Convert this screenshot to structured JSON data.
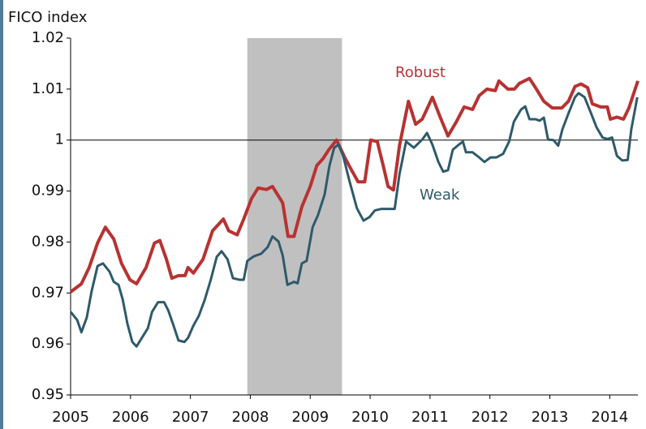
{
  "chart_data": {
    "type": "line",
    "y_label": "FICO index",
    "xlim": [
      2005,
      2014.47
    ],
    "xticks": [
      2005,
      2006,
      2007,
      2008,
      2009,
      2010,
      2011,
      2012,
      2013,
      2014
    ],
    "ylim": [
      0.95,
      1.02
    ],
    "yticks": [
      0.95,
      0.96,
      0.97,
      0.98,
      0.99,
      1,
      1.01,
      1.02
    ],
    "grid": false,
    "hline": 1,
    "shaded_ranges": [
      [
        2007.95,
        2009.53
      ]
    ],
    "shade_color": "#c0c0c0",
    "series": [
      {
        "name": "Robust",
        "color": "#b83232",
        "x": [
          2005.0,
          2005.18,
          2005.31,
          2005.45,
          2005.58,
          2005.72,
          2005.85,
          2005.99,
          2006.1,
          2006.26,
          2006.4,
          2006.49,
          2006.6,
          2006.69,
          2006.8,
          2006.91,
          2006.96,
          2007.05,
          2007.21,
          2007.37,
          2007.55,
          2007.64,
          2007.78,
          2007.89,
          2008.02,
          2008.13,
          2008.27,
          2008.37,
          2008.54,
          2008.63,
          2008.73,
          2008.86,
          2009.0,
          2009.11,
          2009.21,
          2009.31,
          2009.44,
          2009.58,
          2009.69,
          2009.8,
          2009.91,
          2010.01,
          2010.12,
          2010.22,
          2010.3,
          2010.39,
          2010.49,
          2010.64,
          2010.76,
          2010.87,
          2011.04,
          2011.17,
          2011.3,
          2011.44,
          2011.57,
          2011.71,
          2011.82,
          2011.95,
          2012.09,
          2012.15,
          2012.3,
          2012.41,
          2012.49,
          2012.66,
          2012.76,
          2012.9,
          2013.04,
          2013.2,
          2013.31,
          2013.42,
          2013.52,
          2013.63,
          2013.71,
          2013.85,
          2013.96,
          2014.01,
          2014.12,
          2014.23,
          2014.32,
          2014.47
        ],
        "values": [
          0.9702,
          0.9718,
          0.975,
          0.9798,
          0.9829,
          0.9806,
          0.9758,
          0.9726,
          0.9718,
          0.975,
          0.9798,
          0.9803,
          0.9766,
          0.9729,
          0.9734,
          0.9734,
          0.975,
          0.9739,
          0.9766,
          0.9822,
          0.9845,
          0.9822,
          0.9814,
          0.9845,
          0.9885,
          0.9906,
          0.9903,
          0.9909,
          0.9877,
          0.9811,
          0.9811,
          0.9869,
          0.9909,
          0.995,
          0.9963,
          0.9981,
          1.0,
          0.9965,
          0.9941,
          0.9918,
          0.9918,
          1.0,
          0.9997,
          0.9949,
          0.9909,
          0.9902,
          0.9989,
          1.0076,
          1.0031,
          1.0041,
          1.0084,
          1.0045,
          1.0008,
          1.0036,
          1.0065,
          1.006,
          1.0087,
          1.01,
          1.0097,
          1.0116,
          1.01,
          1.01,
          1.0111,
          1.0121,
          1.0103,
          1.0076,
          1.0063,
          1.0063,
          1.0076,
          1.0105,
          1.011,
          1.0103,
          1.0071,
          1.0065,
          1.0065,
          1.0041,
          1.0045,
          1.0041,
          1.0063,
          1.0116
        ]
      },
      {
        "name": "Weak",
        "color": "#2e5a6b",
        "x": [
          2005.0,
          2005.11,
          2005.18,
          2005.27,
          2005.35,
          2005.45,
          2005.54,
          2005.65,
          2005.72,
          2005.8,
          2005.87,
          2005.95,
          2006.03,
          2006.1,
          2006.19,
          2006.29,
          2006.36,
          2006.46,
          2006.56,
          2006.63,
          2006.71,
          2006.8,
          2006.9,
          2006.96,
          2007.05,
          2007.14,
          2007.24,
          2007.34,
          2007.44,
          2007.52,
          2007.62,
          2007.71,
          2007.82,
          2007.89,
          2007.95,
          2008.06,
          2008.18,
          2008.29,
          2008.37,
          2008.47,
          2008.54,
          2008.62,
          2008.73,
          2008.79,
          2008.86,
          2008.94,
          2009.04,
          2009.13,
          2009.24,
          2009.32,
          2009.4,
          2009.47,
          2009.55,
          2009.65,
          2009.78,
          2009.89,
          2009.99,
          2010.08,
          2010.19,
          2010.3,
          2010.41,
          2010.49,
          2010.6,
          2010.73,
          2010.87,
          2010.95,
          2011.04,
          2011.14,
          2011.22,
          2011.3,
          2011.38,
          2011.48,
          2011.55,
          2011.6,
          2011.71,
          2011.82,
          2011.91,
          2012.01,
          2012.11,
          2012.22,
          2012.32,
          2012.4,
          2012.52,
          2012.59,
          2012.66,
          2012.76,
          2012.83,
          2012.9,
          2012.97,
          2013.06,
          2013.14,
          2013.21,
          2013.31,
          2013.42,
          2013.48,
          2013.58,
          2013.69,
          2013.78,
          2013.88,
          2013.96,
          2014.04,
          2014.12,
          2014.21,
          2014.3,
          2014.36,
          2014.46
        ],
        "values": [
          0.9663,
          0.9647,
          0.9623,
          0.9652,
          0.9703,
          0.9753,
          0.9758,
          0.9742,
          0.9722,
          0.9716,
          0.9687,
          0.9639,
          0.9604,
          0.9595,
          0.9612,
          0.9631,
          0.9663,
          0.9682,
          0.9682,
          0.9666,
          0.9639,
          0.9607,
          0.9604,
          0.9612,
          0.9636,
          0.9655,
          0.9687,
          0.9726,
          0.9771,
          0.9782,
          0.9766,
          0.9729,
          0.9726,
          0.9726,
          0.9763,
          0.9772,
          0.9777,
          0.979,
          0.9811,
          0.9801,
          0.9774,
          0.9716,
          0.9722,
          0.9719,
          0.9758,
          0.9763,
          0.9829,
          0.9853,
          0.9893,
          0.9949,
          0.9985,
          0.9991,
          0.9969,
          0.9922,
          0.9866,
          0.9842,
          0.9849,
          0.9862,
          0.9865,
          0.9865,
          0.9865,
          0.9933,
          0.9997,
          0.9985,
          1.0001,
          1.0014,
          0.9991,
          0.9957,
          0.9938,
          0.9941,
          0.9981,
          0.9991,
          0.9997,
          0.9976,
          0.9976,
          0.9966,
          0.9957,
          0.9966,
          0.9966,
          0.9973,
          0.9997,
          1.0036,
          1.006,
          1.0066,
          1.0041,
          1.0041,
          1.0038,
          1.0044,
          1.0001,
          1.0,
          0.9989,
          1.0021,
          1.0052,
          1.0084,
          1.0092,
          1.0084,
          1.0052,
          1.0025,
          1.0005,
          1.0002,
          1.0005,
          0.9969,
          0.996,
          0.9961,
          1.0021,
          1.0084
        ]
      }
    ]
  }
}
